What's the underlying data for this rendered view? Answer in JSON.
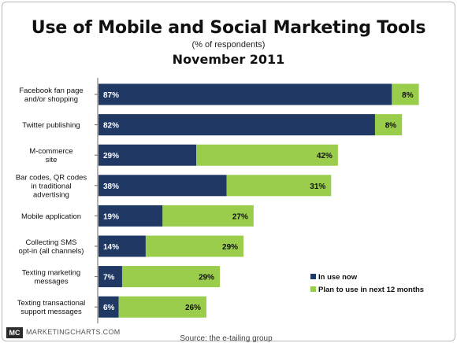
{
  "header": {
    "title": "Use of Mobile and Social Marketing Tools",
    "subtitle": "(% of respondents)",
    "date": "November 2011"
  },
  "footer": {
    "logo": "MC",
    "site": "MARKETINGCHARTS.COM",
    "source": "Source: the e-tailing group"
  },
  "colors": {
    "in_use": "#1f3864",
    "plan": "#9acd4c",
    "axis": "#666666"
  },
  "chart_data": {
    "type": "bar",
    "orientation": "horizontal",
    "stacked": true,
    "categories": [
      [
        "Facebook fan page",
        "and/or shopping"
      ],
      [
        "Twitter publishing"
      ],
      [
        "M-commerce",
        "site"
      ],
      [
        "Bar codes, QR codes",
        "in traditional",
        "advertising"
      ],
      [
        "Mobile application"
      ],
      [
        "Collecting SMS",
        "opt-in (all channels)"
      ],
      [
        "Texting marketing",
        "messages"
      ],
      [
        "Texting transactional",
        "support messages"
      ]
    ],
    "series": [
      {
        "name": "In use now",
        "values": [
          87,
          82,
          29,
          38,
          19,
          14,
          7,
          6
        ]
      },
      {
        "name": "Plan to use in next 12 months",
        "values": [
          8,
          8,
          42,
          31,
          27,
          29,
          29,
          26
        ]
      }
    ],
    "value_suffix": "%",
    "xlim": [
      0,
      100
    ],
    "legend_position": "bottom-right",
    "grid": false
  }
}
